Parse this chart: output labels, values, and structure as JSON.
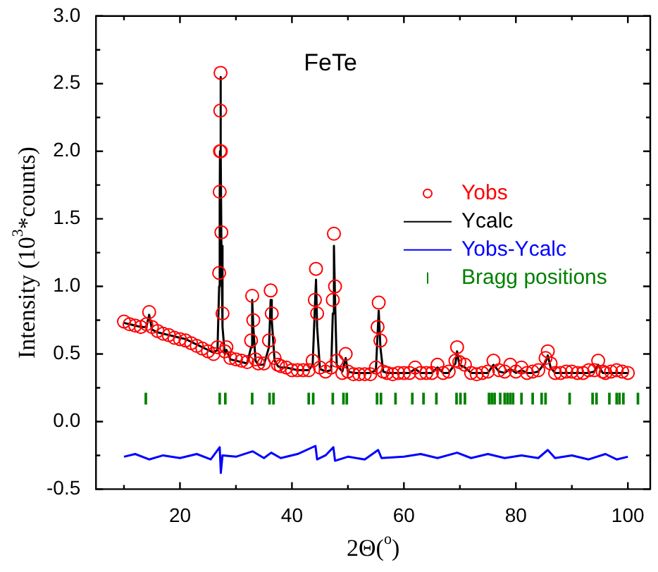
{
  "chart_data": {
    "type": "scatter",
    "title": "FeTe",
    "xlabel": "2Θ($^{o}$)",
    "ylabel": "Intensity (10$^{3}$*counts)",
    "xlim": [
      5,
      104
    ],
    "ylim": [
      -0.5,
      3.0
    ],
    "xticks": [
      {
        "value": 10,
        "label": null
      },
      20,
      {
        "value": 30,
        "label": null
      },
      40,
      {
        "value": 50,
        "label": null
      },
      60,
      {
        "value": 70,
        "label": null
      },
      80,
      {
        "value": 90,
        "label": null
      },
      100
    ],
    "yticks": [
      -0.5,
      {
        "value": -0.25,
        "label": null
      },
      {
        "value": 0,
        "label": "0.0"
      },
      {
        "value": 0.25,
        "label": null
      },
      0.5,
      {
        "value": 0.75,
        "label": null
      },
      {
        "value": 1,
        "label": "1.0"
      },
      {
        "value": 1.25,
        "label": null
      },
      1.5,
      {
        "value": 1.75,
        "label": null
      },
      {
        "value": 2,
        "label": "2.0"
      },
      {
        "value": 2.25,
        "label": null
      },
      2.5,
      {
        "value": 2.75,
        "label": null
      },
      {
        "value": 3,
        "label": "3.0"
      }
    ],
    "grid": false,
    "legend": "right",
    "x": [
      10,
      11,
      12,
      13,
      14,
      14.5,
      15,
      16,
      17,
      18,
      19,
      20,
      21,
      22,
      23,
      24,
      25,
      26,
      26.7,
      27.0,
      27.1,
      27.15,
      27.2,
      27.25,
      27.3,
      27.4,
      27.6,
      28,
      28.3,
      29,
      30,
      31,
      32,
      32.7,
      32.9,
      33.1,
      33.5,
      34,
      35,
      35.9,
      36.2,
      36.4,
      36.9,
      37.5,
      38,
      39,
      40,
      41,
      42,
      43,
      43.7,
      44.1,
      44.3,
      44.5,
      45,
      46,
      47,
      47.3,
      47.5,
      47.7,
      48,
      49,
      49.6,
      50,
      51,
      52,
      53,
      54,
      55,
      55.3,
      55.5,
      55.8,
      56.3,
      57,
      58,
      59,
      60,
      61,
      62,
      63,
      64,
      65,
      66,
      67,
      68,
      69.2,
      69.5,
      69.9,
      70.9,
      72,
      73,
      74,
      75,
      76,
      77,
      78,
      79,
      80,
      81,
      82,
      83,
      84,
      85.3,
      85.7,
      86.2,
      87,
      88,
      89,
      90,
      91,
      92,
      93,
      94,
      94.7,
      95.5,
      96,
      97,
      98,
      99,
      100
    ],
    "series": [
      {
        "name": "Yobs",
        "marker": "circle",
        "color": "#ff0000",
        "values": [
          0.74,
          0.72,
          0.71,
          0.7,
          0.72,
          0.81,
          0.7,
          0.67,
          0.65,
          0.64,
          0.62,
          0.61,
          0.6,
          0.58,
          0.56,
          0.54,
          0.52,
          0.5,
          0.55,
          1.1,
          1.7,
          2.0,
          2.3,
          2.58,
          2.0,
          1.4,
          0.8,
          0.52,
          0.55,
          0.47,
          0.46,
          0.45,
          0.44,
          0.6,
          0.93,
          0.75,
          0.46,
          0.43,
          0.43,
          0.6,
          0.97,
          0.8,
          0.47,
          0.42,
          0.41,
          0.4,
          0.38,
          0.38,
          0.38,
          0.38,
          0.45,
          0.9,
          1.13,
          0.8,
          0.4,
          0.37,
          0.4,
          0.9,
          1.39,
          1.0,
          0.45,
          0.36,
          0.5,
          0.37,
          0.35,
          0.35,
          0.35,
          0.35,
          0.4,
          0.7,
          0.88,
          0.6,
          0.37,
          0.36,
          0.35,
          0.36,
          0.36,
          0.36,
          0.4,
          0.36,
          0.36,
          0.36,
          0.42,
          0.36,
          0.37,
          0.45,
          0.55,
          0.44,
          0.42,
          0.36,
          0.35,
          0.36,
          0.37,
          0.45,
          0.38,
          0.37,
          0.42,
          0.37,
          0.4,
          0.36,
          0.37,
          0.38,
          0.47,
          0.52,
          0.43,
          0.36,
          0.36,
          0.37,
          0.37,
          0.36,
          0.36,
          0.38,
          0.38,
          0.45,
          0.37,
          0.36,
          0.37,
          0.38,
          0.37,
          0.36
        ]
      },
      {
        "name": "Ycalc",
        "type": "line",
        "marker": "none",
        "color": "#000000",
        "x": [
          10,
          11,
          12,
          13,
          14,
          14.5,
          15,
          16,
          17,
          18,
          19,
          20,
          21,
          22,
          23,
          24,
          25,
          26,
          26.7,
          27.0,
          27.1,
          27.15,
          27.25,
          27.3,
          27.4,
          27.6,
          28,
          28.3,
          29,
          30,
          31,
          32,
          32.7,
          32.9,
          33.1,
          33.5,
          34,
          35,
          35.9,
          36.2,
          36.4,
          36.9,
          37.5,
          38,
          39,
          40,
          41,
          42,
          43,
          43.7,
          44.1,
          44.3,
          44.5,
          45,
          46,
          47,
          47.3,
          47.5,
          47.7,
          48,
          49,
          49.6,
          50,
          51,
          52,
          53,
          54,
          55,
          55.3,
          55.5,
          55.8,
          56.3,
          57,
          58,
          59,
          60,
          61,
          62,
          63,
          64,
          65,
          66,
          67,
          68,
          69.2,
          69.5,
          69.9,
          70.9,
          72,
          73,
          74,
          75,
          76,
          77,
          78,
          79,
          80,
          81,
          82,
          83,
          84,
          85.3,
          85.7,
          86.2,
          87,
          88,
          89,
          90,
          91,
          92,
          93,
          94,
          94.7,
          95.5,
          96,
          97,
          98,
          99,
          100
        ],
        "values": [
          0.73,
          0.72,
          0.71,
          0.7,
          0.7,
          0.79,
          0.68,
          0.66,
          0.65,
          0.64,
          0.63,
          0.62,
          0.61,
          0.59,
          0.57,
          0.55,
          0.53,
          0.51,
          0.53,
          1.0,
          1.6,
          2.0,
          2.55,
          2.0,
          1.3,
          0.7,
          0.5,
          0.53,
          0.46,
          0.45,
          0.44,
          0.43,
          0.55,
          0.9,
          0.7,
          0.45,
          0.42,
          0.42,
          0.55,
          0.9,
          0.75,
          0.45,
          0.41,
          0.4,
          0.4,
          0.39,
          0.38,
          0.38,
          0.38,
          0.42,
          0.85,
          1.05,
          0.7,
          0.39,
          0.37,
          0.38,
          0.8,
          1.3,
          0.9,
          0.42,
          0.37,
          0.47,
          0.37,
          0.36,
          0.36,
          0.36,
          0.36,
          0.38,
          0.65,
          0.82,
          0.55,
          0.37,
          0.36,
          0.36,
          0.36,
          0.36,
          0.36,
          0.39,
          0.36,
          0.36,
          0.36,
          0.4,
          0.36,
          0.36,
          0.43,
          0.52,
          0.42,
          0.4,
          0.36,
          0.36,
          0.36,
          0.36,
          0.42,
          0.37,
          0.36,
          0.39,
          0.36,
          0.38,
          0.36,
          0.36,
          0.37,
          0.44,
          0.49,
          0.4,
          0.36,
          0.36,
          0.36,
          0.36,
          0.36,
          0.36,
          0.36,
          0.37,
          0.42,
          0.36,
          0.36,
          0.36,
          0.36,
          0.36,
          0.36
        ]
      },
      {
        "name": "Yobs-Ycalc",
        "type": "line",
        "marker": "none",
        "color": "#0000ff",
        "x": [
          10,
          12,
          14.5,
          17,
          20,
          23,
          25.5,
          27.1,
          27.3,
          27.6,
          30,
          33,
          35,
          36.3,
          38,
          41,
          44.2,
          44.5,
          46,
          47.4,
          47.7,
          50,
          53,
          55.4,
          56,
          60,
          63,
          66,
          69.5,
          72,
          75,
          78,
          81,
          84,
          85.7,
          87,
          90,
          93,
          96,
          98,
          100
        ],
        "values": [
          -0.26,
          -0.24,
          -0.28,
          -0.25,
          -0.27,
          -0.24,
          -0.28,
          -0.19,
          -0.38,
          -0.25,
          -0.26,
          -0.22,
          -0.27,
          -0.23,
          -0.27,
          -0.24,
          -0.18,
          -0.28,
          -0.25,
          -0.19,
          -0.29,
          -0.26,
          -0.28,
          -0.21,
          -0.27,
          -0.26,
          -0.24,
          -0.27,
          -0.23,
          -0.27,
          -0.24,
          -0.27,
          -0.25,
          -0.27,
          -0.21,
          -0.27,
          -0.25,
          -0.28,
          -0.24,
          -0.28,
          -0.26
        ]
      },
      {
        "name": "Bragg positions",
        "type": "bar",
        "color": "#008000",
        "base": [
          0.13,
          0.13,
          0.13,
          0.13,
          0.13,
          0.13,
          0.13,
          0.13,
          0.13,
          0.13,
          0.13,
          0.13,
          0.13,
          0.13,
          0.13,
          0.13,
          0.13,
          0.13,
          0.13,
          0.13,
          0.13,
          0.13,
          0.13,
          0.13,
          0.13,
          0.13,
          0.13,
          0.13,
          0.13,
          0.13,
          0.13,
          0.13,
          0.13,
          0.13,
          0.13,
          0.13,
          0.13,
          0.13,
          0.13,
          0.13
        ],
        "x": [
          13.9,
          27.1,
          28.1,
          32.9,
          36.0,
          36.7,
          43.0,
          43.8,
          47.3,
          49.2,
          49.8,
          55.2,
          55.9,
          58.5,
          61.5,
          63.5,
          65.8,
          69.4,
          70.1,
          70.9,
          75.2,
          75.7,
          76.2,
          77.2,
          78.0,
          78.5,
          79.0,
          79.5,
          81.0,
          83.0,
          84.6,
          85.3,
          89.6,
          93.7,
          94.4,
          96.7,
          98.0,
          98.5,
          99.2,
          101.8
        ],
        "values": [
          0.08,
          0.08,
          0.08,
          0.08,
          0.08,
          0.08,
          0.08,
          0.08,
          0.08,
          0.08,
          0.08,
          0.08,
          0.08,
          0.08,
          0.08,
          0.08,
          0.08,
          0.08,
          0.08,
          0.08,
          0.08,
          0.08,
          0.08,
          0.08,
          0.08,
          0.08,
          0.08,
          0.08,
          0.08,
          0.08,
          0.08,
          0.08,
          0.08,
          0.08,
          0.08,
          0.08,
          0.08,
          0.08,
          0.08,
          0.08
        ]
      }
    ]
  }
}
